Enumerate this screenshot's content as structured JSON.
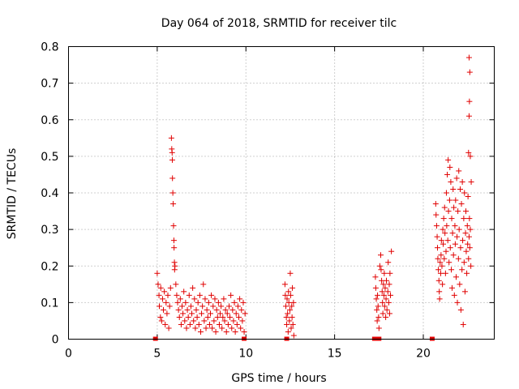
{
  "chart_data": {
    "type": "scatter",
    "title": "Day 064 of 2018, SRMTID for receiver tilc",
    "xlabel": "GPS time / hours",
    "ylabel": "SRMTID / TECUs",
    "xlim": [
      0,
      24
    ],
    "ylim": [
      0,
      0.8
    ],
    "xticks": [
      0,
      5,
      10,
      15,
      20
    ],
    "yticks": [
      0,
      0.1,
      0.2,
      0.3,
      0.4,
      0.5,
      0.6,
      0.7,
      0.8
    ],
    "xtick_labels": [
      "0",
      "5",
      "10",
      "15",
      "20"
    ],
    "ytick_labels": [
      "0",
      "0.1",
      "0.2",
      "0.3",
      "0.4",
      "0.5",
      "0.6",
      "0.7",
      "0.8"
    ],
    "grid": true,
    "legend": "none",
    "marker": "+",
    "color": "#e00000",
    "zero_marks_x": [
      4.9,
      9.9,
      12.3,
      17.25,
      17.5,
      20.5
    ],
    "series": [
      {
        "points": [
          [
            5.0,
            0.18
          ],
          [
            5.05,
            0.15
          ],
          [
            5.1,
            0.12
          ],
          [
            5.12,
            0.09
          ],
          [
            5.18,
            0.06
          ],
          [
            5.2,
            0.14
          ],
          [
            5.25,
            0.05
          ],
          [
            5.3,
            0.11
          ],
          [
            5.35,
            0.08
          ],
          [
            5.4,
            0.13
          ],
          [
            5.45,
            0.04
          ],
          [
            5.5,
            0.1
          ],
          [
            5.55,
            0.07
          ],
          [
            5.6,
            0.12
          ],
          [
            5.65,
            0.03
          ],
          [
            5.7,
            0.09
          ],
          [
            5.75,
            0.14
          ],
          [
            5.8,
            0.55
          ],
          [
            5.82,
            0.52
          ],
          [
            5.85,
            0.49
          ],
          [
            5.86,
            0.44
          ],
          [
            5.88,
            0.4
          ],
          [
            5.9,
            0.37
          ],
          [
            5.92,
            0.31
          ],
          [
            5.94,
            0.27
          ],
          [
            5.95,
            0.25
          ],
          [
            5.97,
            0.21
          ],
          [
            5.98,
            0.19
          ],
          [
            6.0,
            0.2
          ],
          [
            5.84,
            0.51
          ],
          [
            6.05,
            0.15
          ],
          [
            6.1,
            0.12
          ],
          [
            6.15,
            0.1
          ],
          [
            6.2,
            0.08
          ],
          [
            6.25,
            0.06
          ],
          [
            6.3,
            0.11
          ],
          [
            6.35,
            0.04
          ],
          [
            6.4,
            0.09
          ],
          [
            6.45,
            0.07
          ],
          [
            6.5,
            0.13
          ],
          [
            6.55,
            0.05
          ],
          [
            6.6,
            0.1
          ],
          [
            6.65,
            0.03
          ],
          [
            6.7,
            0.08
          ],
          [
            6.75,
            0.06
          ],
          [
            6.8,
            0.12
          ],
          [
            6.85,
            0.04
          ],
          [
            6.9,
            0.09
          ],
          [
            6.95,
            0.07
          ],
          [
            7.0,
            0.14
          ],
          [
            7.05,
            0.05
          ],
          [
            7.1,
            0.11
          ],
          [
            7.15,
            0.03
          ],
          [
            7.2,
            0.08
          ],
          [
            7.25,
            0.06
          ],
          [
            7.3,
            0.1
          ],
          [
            7.35,
            0.04
          ],
          [
            7.4,
            0.12
          ],
          [
            7.45,
            0.02
          ],
          [
            7.5,
            0.07
          ],
          [
            7.55,
            0.09
          ],
          [
            7.6,
            0.15
          ],
          [
            7.65,
            0.05
          ],
          [
            7.7,
            0.11
          ],
          [
            7.75,
            0.03
          ],
          [
            7.8,
            0.08
          ],
          [
            7.85,
            0.06
          ],
          [
            7.9,
            0.1
          ],
          [
            7.95,
            0.04
          ],
          [
            8.0,
            0.07
          ],
          [
            8.05,
            0.12
          ],
          [
            8.1,
            0.03
          ],
          [
            8.15,
            0.09
          ],
          [
            8.2,
            0.05
          ],
          [
            8.25,
            0.11
          ],
          [
            8.3,
            0.02
          ],
          [
            8.35,
            0.08
          ],
          [
            8.4,
            0.06
          ],
          [
            8.45,
            0.1
          ],
          [
            8.5,
            0.04
          ],
          [
            8.55,
            0.07
          ],
          [
            8.6,
            0.09
          ],
          [
            8.65,
            0.03
          ],
          [
            8.7,
            0.06
          ],
          [
            8.75,
            0.11
          ],
          [
            8.8,
            0.05
          ],
          [
            8.85,
            0.08
          ],
          [
            8.9,
            0.02
          ],
          [
            8.95,
            0.07
          ],
          [
            9.0,
            0.04
          ],
          [
            9.05,
            0.09
          ],
          [
            9.1,
            0.06
          ],
          [
            9.15,
            0.12
          ],
          [
            9.2,
            0.03
          ],
          [
            9.25,
            0.08
          ],
          [
            9.3,
            0.05
          ],
          [
            9.35,
            0.1
          ],
          [
            9.4,
            0.02
          ],
          [
            9.45,
            0.07
          ],
          [
            9.5,
            0.04
          ],
          [
            9.55,
            0.09
          ],
          [
            9.6,
            0.06
          ],
          [
            9.65,
            0.11
          ],
          [
            9.7,
            0.03
          ],
          [
            9.75,
            0.08
          ],
          [
            9.8,
            0.05
          ],
          [
            9.85,
            0.1
          ],
          [
            9.9,
            0.02
          ],
          [
            9.95,
            0.07
          ],
          [
            12.2,
            0.15
          ],
          [
            12.22,
            0.12
          ],
          [
            12.25,
            0.09
          ],
          [
            12.28,
            0.06
          ],
          [
            12.3,
            0.04
          ],
          [
            12.32,
            0.11
          ],
          [
            12.35,
            0.07
          ],
          [
            12.38,
            0.02
          ],
          [
            12.4,
            0.13
          ],
          [
            12.42,
            0.1
          ],
          [
            12.45,
            0.05
          ],
          [
            12.48,
            0.08
          ],
          [
            12.5,
            0.18
          ],
          [
            12.52,
            0.12
          ],
          [
            12.55,
            0.03
          ],
          [
            12.58,
            0.09
          ],
          [
            12.6,
            0.06
          ],
          [
            12.62,
            0.14
          ],
          [
            12.65,
            0.04
          ],
          [
            12.68,
            0.1
          ],
          [
            12.7,
            0.01
          ],
          [
            17.3,
            0.17
          ],
          [
            17.32,
            0.14
          ],
          [
            17.35,
            0.11
          ],
          [
            17.38,
            0.08
          ],
          [
            17.4,
            0.05
          ],
          [
            17.42,
            0.12
          ],
          [
            17.45,
            0.09
          ],
          [
            17.48,
            0.06
          ],
          [
            17.5,
            0.03
          ],
          [
            17.55,
            0.2
          ],
          [
            17.6,
            0.23
          ],
          [
            17.62,
            0.19
          ],
          [
            17.65,
            0.16
          ],
          [
            17.68,
            0.13
          ],
          [
            17.7,
            0.1
          ],
          [
            17.72,
            0.07
          ],
          [
            17.75,
            0.15
          ],
          [
            17.78,
            0.12
          ],
          [
            17.8,
            0.18
          ],
          [
            17.82,
            0.09
          ],
          [
            17.85,
            0.14
          ],
          [
            17.88,
            0.06
          ],
          [
            17.9,
            0.11
          ],
          [
            17.92,
            0.16
          ],
          [
            17.95,
            0.08
          ],
          [
            18.0,
            0.13
          ],
          [
            18.02,
            0.21
          ],
          [
            18.05,
            0.1
          ],
          [
            18.08,
            0.15
          ],
          [
            18.1,
            0.07
          ],
          [
            18.12,
            0.18
          ],
          [
            18.15,
            0.12
          ],
          [
            18.2,
            0.24
          ],
          [
            20.7,
            0.37
          ],
          [
            20.72,
            0.34
          ],
          [
            20.75,
            0.31
          ],
          [
            20.78,
            0.28
          ],
          [
            20.8,
            0.25
          ],
          [
            20.82,
            0.22
          ],
          [
            20.85,
            0.19
          ],
          [
            20.88,
            0.16
          ],
          [
            20.9,
            0.13
          ],
          [
            20.92,
            0.11
          ],
          [
            20.95,
            0.21
          ],
          [
            20.98,
            0.18
          ],
          [
            21.0,
            0.23
          ],
          [
            21.02,
            0.27
          ],
          [
            21.05,
            0.2
          ],
          [
            21.08,
            0.15
          ],
          [
            21.1,
            0.3
          ],
          [
            21.12,
            0.26
          ],
          [
            21.15,
            0.33
          ],
          [
            21.18,
            0.22
          ],
          [
            21.2,
            0.36
          ],
          [
            21.22,
            0.29
          ],
          [
            21.25,
            0.18
          ],
          [
            21.28,
            0.24
          ],
          [
            21.3,
            0.4
          ],
          [
            21.32,
            0.31
          ],
          [
            21.35,
            0.45
          ],
          [
            21.38,
            0.27
          ],
          [
            21.4,
            0.49
          ],
          [
            21.42,
            0.35
          ],
          [
            21.45,
            0.21
          ],
          [
            21.48,
            0.38
          ],
          [
            21.5,
            0.47
          ],
          [
            21.52,
            0.25
          ],
          [
            21.55,
            0.43
          ],
          [
            21.58,
            0.19
          ],
          [
            21.6,
            0.33
          ],
          [
            21.62,
            0.14
          ],
          [
            21.65,
            0.29
          ],
          [
            21.68,
            0.41
          ],
          [
            21.7,
            0.23
          ],
          [
            21.72,
            0.36
          ],
          [
            21.75,
            0.12
          ],
          [
            21.78,
            0.31
          ],
          [
            21.8,
            0.26
          ],
          [
            21.82,
            0.38
          ],
          [
            21.85,
            0.17
          ],
          [
            21.88,
            0.44
          ],
          [
            21.9,
            0.28
          ],
          [
            21.92,
            0.1
          ],
          [
            21.95,
            0.35
          ],
          [
            21.98,
            0.22
          ],
          [
            22.0,
            0.46
          ],
          [
            22.02,
            0.3
          ],
          [
            22.05,
            0.15
          ],
          [
            22.08,
            0.41
          ],
          [
            22.1,
            0.25
          ],
          [
            22.12,
            0.08
          ],
          [
            22.15,
            0.37
          ],
          [
            22.18,
            0.19
          ],
          [
            22.2,
            0.43
          ],
          [
            22.22,
            0.27
          ],
          [
            22.25,
            0.04
          ],
          [
            22.28,
            0.33
          ],
          [
            22.3,
            0.21
          ],
          [
            22.32,
            0.4
          ],
          [
            22.35,
            0.13
          ],
          [
            22.38,
            0.29
          ],
          [
            22.4,
            0.35
          ],
          [
            22.42,
            0.24
          ],
          [
            22.45,
            0.18
          ],
          [
            22.48,
            0.31
          ],
          [
            22.5,
            0.26
          ],
          [
            22.52,
            0.39
          ],
          [
            22.55,
            0.22
          ],
          [
            22.58,
            0.28
          ],
          [
            22.6,
            0.33
          ],
          [
            22.62,
            0.25
          ],
          [
            22.65,
            0.3
          ],
          [
            22.68,
            0.2
          ],
          [
            22.7,
            0.43
          ],
          [
            22.55,
            0.51
          ],
          [
            22.58,
            0.61
          ],
          [
            22.6,
            0.65
          ],
          [
            22.62,
            0.73
          ],
          [
            22.58,
            0.77
          ],
          [
            22.65,
            0.5
          ]
        ]
      }
    ]
  }
}
